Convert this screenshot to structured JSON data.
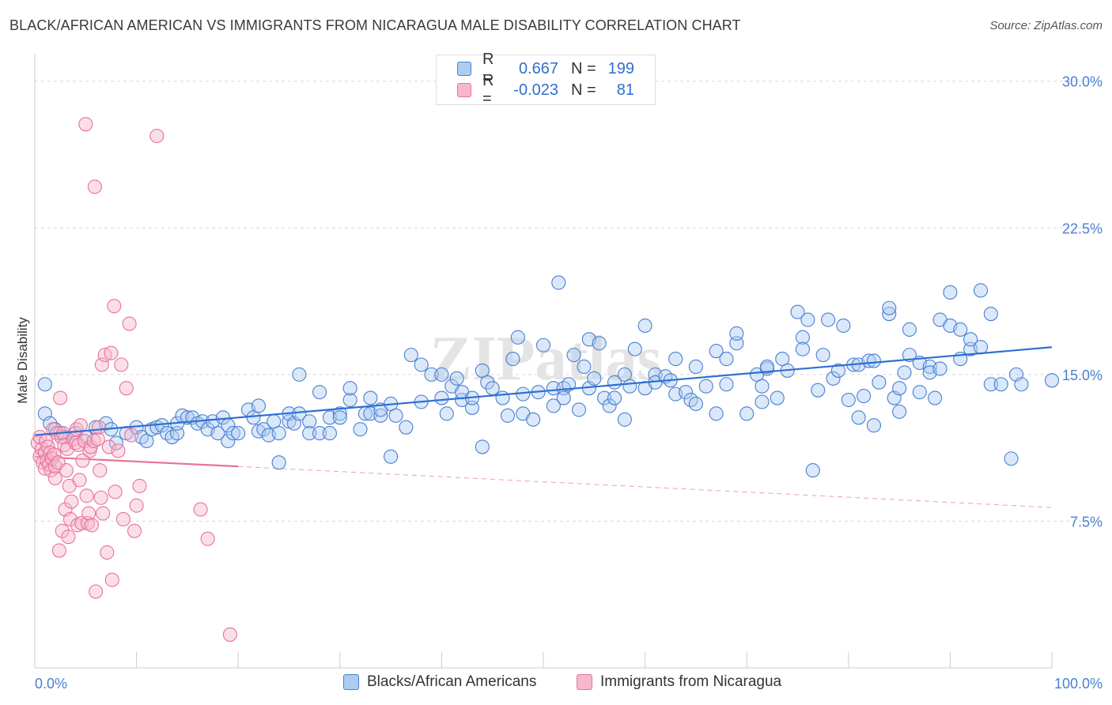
{
  "header": {
    "title": "BLACK/AFRICAN AMERICAN VS IMMIGRANTS FROM NICARAGUA MALE DISABILITY CORRELATION CHART",
    "source": "Source: ZipAtlas.com"
  },
  "legend": {
    "rows": [
      {
        "r_label": "R =",
        "r_value": "0.667",
        "n_label": "N =",
        "n_value": "199"
      },
      {
        "r_label": "R =",
        "r_value": "-0.023",
        "n_label": "N =",
        "n_value": "81"
      }
    ]
  },
  "bottom_legend": {
    "series1": "Blacks/African Americans",
    "series2": "Immigrants from Nicaragua"
  },
  "colors": {
    "blue": "#4a7fd0",
    "blue_fill": "#aecbf2",
    "blue_line": "#2e6fd4",
    "pink": "#e8729a",
    "pink_fill": "#f6b8cb",
    "pink_line": "#e8729a",
    "grid": "#d8d8d8",
    "tick": "#4a7fd0"
  },
  "watermark": "ZIPatlas",
  "chart_data": {
    "type": "scatter",
    "title": "BLACK/AFRICAN AMERICAN VS IMMIGRANTS FROM NICARAGUA MALE DISABILITY CORRELATION CHART",
    "xlabel": "",
    "ylabel": "Male Disability",
    "xlim": [
      0,
      100
    ],
    "ylim": [
      0,
      31
    ],
    "x_tick_labels": [
      "0.0%",
      "100.0%"
    ],
    "y_ticks": [
      7.5,
      15.0,
      22.5,
      30.0
    ],
    "y_tick_labels": [
      "7.5%",
      "15.0%",
      "22.5%",
      "30.0%"
    ],
    "grid": true,
    "series": [
      {
        "name": "Blacks/African Americans",
        "r": 0.667,
        "n": 199,
        "trend": {
          "x0": 0,
          "y0": 11.9,
          "x1": 100,
          "y1": 16.4
        },
        "points": [
          [
            1,
            14.5
          ],
          [
            1,
            13
          ],
          [
            1.5,
            12.5
          ],
          [
            2,
            12.2
          ],
          [
            2.5,
            12
          ],
          [
            3,
            11.8
          ],
          [
            4,
            12
          ],
          [
            5,
            11.8
          ],
          [
            6,
            12.3
          ],
          [
            7,
            12.5
          ],
          [
            7.5,
            12.2
          ],
          [
            8,
            11.5
          ],
          [
            9,
            12
          ],
          [
            10,
            12.3
          ],
          [
            10.5,
            11.8
          ],
          [
            11,
            11.6
          ],
          [
            11.5,
            12.2
          ],
          [
            12,
            12.3
          ],
          [
            12.5,
            12.4
          ],
          [
            13,
            12
          ],
          [
            13.5,
            11.8
          ],
          [
            14,
            12
          ],
          [
            14,
            12.5
          ],
          [
            14.5,
            12.9
          ],
          [
            15,
            12.8
          ],
          [
            15.5,
            12.8
          ],
          [
            16,
            12.5
          ],
          [
            16.5,
            12.6
          ],
          [
            17,
            12.2
          ],
          [
            17.5,
            12.6
          ],
          [
            18,
            12
          ],
          [
            18.5,
            12.8
          ],
          [
            19,
            11.6
          ],
          [
            19,
            12.4
          ],
          [
            19.5,
            12
          ],
          [
            20,
            12
          ],
          [
            21,
            13.2
          ],
          [
            21.5,
            12.8
          ],
          [
            22,
            13.4
          ],
          [
            22,
            12.1
          ],
          [
            22.5,
            12.2
          ],
          [
            23,
            11.9
          ],
          [
            23.5,
            12.6
          ],
          [
            24,
            10.5
          ],
          [
            24,
            12
          ],
          [
            25,
            12.6
          ],
          [
            25,
            13
          ],
          [
            25.5,
            12.5
          ],
          [
            26,
            13
          ],
          [
            26,
            15
          ],
          [
            27,
            12.6
          ],
          [
            27,
            12
          ],
          [
            28,
            14.1
          ],
          [
            28,
            12
          ],
          [
            29,
            12.8
          ],
          [
            29,
            12
          ],
          [
            30,
            13
          ],
          [
            30,
            12.8
          ],
          [
            31,
            13.7
          ],
          [
            31,
            14.3
          ],
          [
            32,
            12.2
          ],
          [
            32.5,
            13
          ],
          [
            33,
            13.8
          ],
          [
            33,
            13
          ],
          [
            34,
            12.9
          ],
          [
            34,
            13.2
          ],
          [
            35,
            13.5
          ],
          [
            35.5,
            12.9
          ],
          [
            35,
            10.8
          ],
          [
            36.5,
            12.3
          ],
          [
            37,
            16
          ],
          [
            38,
            13.6
          ],
          [
            38,
            15.5
          ],
          [
            39,
            15
          ],
          [
            40,
            13.8
          ],
          [
            40,
            15
          ],
          [
            40.5,
            13
          ],
          [
            41,
            14.4
          ],
          [
            41.5,
            14.8
          ],
          [
            42,
            13.7
          ],
          [
            42,
            14.1
          ],
          [
            43,
            13.3
          ],
          [
            43,
            13.8
          ],
          [
            44,
            11.3
          ],
          [
            44,
            15.2
          ],
          [
            44.5,
            14.6
          ],
          [
            45,
            14.3
          ],
          [
            46,
            13.8
          ],
          [
            46.5,
            12.9
          ],
          [
            47,
            15.8
          ],
          [
            47.5,
            16.9
          ],
          [
            48,
            13
          ],
          [
            48,
            14
          ],
          [
            49,
            12.7
          ],
          [
            49.5,
            14.1
          ],
          [
            50,
            16.5
          ],
          [
            51,
            13.4
          ],
          [
            51,
            14.3
          ],
          [
            51.5,
            19.7
          ],
          [
            52,
            14.3
          ],
          [
            52,
            13.8
          ],
          [
            52.5,
            14.5
          ],
          [
            53,
            16
          ],
          [
            53.5,
            13.2
          ],
          [
            54,
            15.4
          ],
          [
            54.5,
            14.3
          ],
          [
            54.5,
            16.8
          ],
          [
            55,
            14.8
          ],
          [
            55.5,
            16.6
          ],
          [
            56,
            13.8
          ],
          [
            56.5,
            13.4
          ],
          [
            57,
            13.8
          ],
          [
            57,
            14.6
          ],
          [
            58,
            12.7
          ],
          [
            58,
            15
          ],
          [
            58.5,
            14.4
          ],
          [
            59,
            16.3
          ],
          [
            60,
            14.3
          ],
          [
            60,
            17.5
          ],
          [
            61,
            15
          ],
          [
            61,
            14.6
          ],
          [
            62,
            14.9
          ],
          [
            62.5,
            14.7
          ],
          [
            63,
            15.8
          ],
          [
            63,
            14
          ],
          [
            64,
            14.1
          ],
          [
            64.5,
            13.7
          ],
          [
            65,
            13.5
          ],
          [
            65,
            15.4
          ],
          [
            66,
            14.4
          ],
          [
            67,
            16.2
          ],
          [
            67,
            13
          ],
          [
            68,
            15.8
          ],
          [
            68,
            14.5
          ],
          [
            69,
            16.6
          ],
          [
            69,
            17.1
          ],
          [
            70,
            13
          ],
          [
            71,
            15
          ],
          [
            71.5,
            14.4
          ],
          [
            71.5,
            13.6
          ],
          [
            72,
            15.3
          ],
          [
            72,
            15.4
          ],
          [
            73,
            13.8
          ],
          [
            73.5,
            15.8
          ],
          [
            74,
            15.2
          ],
          [
            75,
            18.2
          ],
          [
            75.5,
            16.9
          ],
          [
            75.5,
            16.3
          ],
          [
            76,
            17.8
          ],
          [
            76.5,
            10.1
          ],
          [
            77,
            14.2
          ],
          [
            77.5,
            16
          ],
          [
            78,
            17.8
          ],
          [
            78.5,
            14.8
          ],
          [
            79,
            15.2
          ],
          [
            79.5,
            17.5
          ],
          [
            80,
            13.7
          ],
          [
            80.5,
            15.5
          ],
          [
            81,
            12.8
          ],
          [
            81,
            15.5
          ],
          [
            81.5,
            13.9
          ],
          [
            82,
            15.7
          ],
          [
            82.5,
            15.7
          ],
          [
            82.5,
            12.4
          ],
          [
            83,
            14.6
          ],
          [
            84,
            18.1
          ],
          [
            84,
            18.4
          ],
          [
            84.5,
            13.8
          ],
          [
            85,
            14.3
          ],
          [
            85,
            13.1
          ],
          [
            85.5,
            15.1
          ],
          [
            86,
            16
          ],
          [
            86,
            17.3
          ],
          [
            87,
            15.6
          ],
          [
            87,
            14.1
          ],
          [
            88,
            15.4
          ],
          [
            88,
            15.1
          ],
          [
            88.5,
            13.8
          ],
          [
            89,
            17.8
          ],
          [
            89,
            15.3
          ],
          [
            90,
            19.2
          ],
          [
            90,
            17.5
          ],
          [
            91,
            17.3
          ],
          [
            91,
            15.8
          ],
          [
            92,
            16.3
          ],
          [
            92,
            16.8
          ],
          [
            93,
            19.3
          ],
          [
            93,
            16.4
          ],
          [
            94,
            18.1
          ],
          [
            94,
            14.5
          ],
          [
            95,
            14.5
          ],
          [
            96,
            10.7
          ],
          [
            96.5,
            15
          ],
          [
            97,
            14.5
          ],
          [
            100,
            14.7
          ]
        ]
      },
      {
        "name": "Immigrants from Nicaragua",
        "r": -0.023,
        "n": 81,
        "trend": {
          "x0": 0,
          "y0": 10.8,
          "x1": 20,
          "y1": 10.3
        },
        "trend_dashed": {
          "x0": 20,
          "y0": 10.3,
          "x1": 100,
          "y1": 8.2
        },
        "points": [
          [
            0.3,
            11.5
          ],
          [
            0.5,
            11.8
          ],
          [
            0.5,
            10.8
          ],
          [
            0.7,
            11.2
          ],
          [
            0.8,
            10.5
          ],
          [
            1,
            11
          ],
          [
            1,
            10.2
          ],
          [
            1.1,
            11.6
          ],
          [
            1.2,
            10.6
          ],
          [
            1.3,
            11.3
          ],
          [
            1.4,
            10.4
          ],
          [
            1.5,
            11
          ],
          [
            1.6,
            10.1
          ],
          [
            1.7,
            10.7
          ],
          [
            1.8,
            12.2
          ],
          [
            1.9,
            10.9
          ],
          [
            2,
            9.7
          ],
          [
            2,
            10.3
          ],
          [
            2.2,
            12
          ],
          [
            2.3,
            10.5
          ],
          [
            2.4,
            6
          ],
          [
            2.5,
            13.8
          ],
          [
            2.6,
            11.8
          ],
          [
            2.7,
            7
          ],
          [
            2.8,
            12
          ],
          [
            2.9,
            11.4
          ],
          [
            3,
            8.1
          ],
          [
            3.1,
            10.1
          ],
          [
            3.2,
            11.2
          ],
          [
            3.3,
            6.7
          ],
          [
            3.4,
            9.3
          ],
          [
            3.5,
            7.6
          ],
          [
            3.6,
            8.5
          ],
          [
            3.8,
            11.7
          ],
          [
            4,
            11.5
          ],
          [
            4.1,
            12.2
          ],
          [
            4.2,
            7.3
          ],
          [
            4.3,
            11.4
          ],
          [
            4.4,
            9.6
          ],
          [
            4.5,
            12.4
          ],
          [
            4.6,
            7.4
          ],
          [
            4.7,
            10.6
          ],
          [
            4.9,
            11.6
          ],
          [
            5,
            27.8
          ],
          [
            5.1,
            8.8
          ],
          [
            5.2,
            7.4
          ],
          [
            5.3,
            7.9
          ],
          [
            5.4,
            11.1
          ],
          [
            5.5,
            11.3
          ],
          [
            5.6,
            7.3
          ],
          [
            5.8,
            11.6
          ],
          [
            5.9,
            24.6
          ],
          [
            6,
            3.9
          ],
          [
            6.2,
            11.7
          ],
          [
            6.3,
            12.3
          ],
          [
            6.4,
            10.1
          ],
          [
            6.5,
            8.7
          ],
          [
            6.6,
            15.5
          ],
          [
            6.7,
            7.9
          ],
          [
            6.9,
            16
          ],
          [
            7.1,
            5.9
          ],
          [
            7.3,
            11.3
          ],
          [
            7.5,
            16.1
          ],
          [
            7.6,
            4.5
          ],
          [
            7.8,
            18.5
          ],
          [
            7.9,
            9
          ],
          [
            8.2,
            11.1
          ],
          [
            8.5,
            15.5
          ],
          [
            8.7,
            7.6
          ],
          [
            9,
            14.3
          ],
          [
            9.3,
            17.6
          ],
          [
            9.5,
            11.9
          ],
          [
            9.8,
            7
          ],
          [
            10,
            8.3
          ],
          [
            10.3,
            9.3
          ],
          [
            12,
            27.2
          ],
          [
            16.3,
            8.1
          ],
          [
            17,
            6.6
          ],
          [
            19.2,
            1.7
          ]
        ]
      }
    ]
  }
}
